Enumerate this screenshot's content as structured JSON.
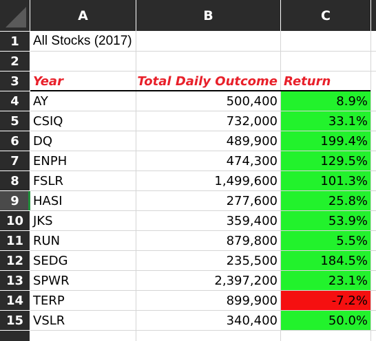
{
  "sheet": {
    "columns": [
      "A",
      "B",
      "C"
    ],
    "rows": [
      "1",
      "2",
      "3",
      "4",
      "5",
      "6",
      "7",
      "8",
      "9",
      "10",
      "11",
      "12",
      "13",
      "14",
      "15"
    ],
    "selected_row": "9",
    "title": "All Stocks (2017)",
    "headers": {
      "year": "Year",
      "total": "Total Daily Outcome",
      "return": "Return"
    },
    "data": [
      {
        "ticker": "AY",
        "total": "500,400",
        "ret": "8.9%",
        "status": "positive"
      },
      {
        "ticker": "CSIQ",
        "total": "732,000",
        "ret": "33.1%",
        "status": "positive"
      },
      {
        "ticker": "DQ",
        "total": "489,900",
        "ret": "199.4%",
        "status": "positive"
      },
      {
        "ticker": "ENPH",
        "total": "474,300",
        "ret": "129.5%",
        "status": "positive"
      },
      {
        "ticker": "FSLR",
        "total": "1,499,600",
        "ret": "101.3%",
        "status": "positive"
      },
      {
        "ticker": "HASI",
        "total": "277,600",
        "ret": "25.8%",
        "status": "positive"
      },
      {
        "ticker": "JKS",
        "total": "359,400",
        "ret": "53.9%",
        "status": "positive"
      },
      {
        "ticker": "RUN",
        "total": "879,800",
        "ret": "5.5%",
        "status": "positive"
      },
      {
        "ticker": "SEDG",
        "total": "235,500",
        "ret": "184.5%",
        "status": "positive"
      },
      {
        "ticker": "SPWR",
        "total": "2,397,200",
        "ret": "23.1%",
        "status": "positive"
      },
      {
        "ticker": "TERP",
        "total": "899,900",
        "ret": "-7.2%",
        "status": "negative"
      },
      {
        "ticker": "VSLR",
        "total": "340,400",
        "ret": "50.0%",
        "status": "positive"
      }
    ],
    "colors": {
      "positive": "#22f22c",
      "negative": "#f51010",
      "header_text": "#e8202a",
      "header_bg": "#2b2b2b"
    }
  }
}
